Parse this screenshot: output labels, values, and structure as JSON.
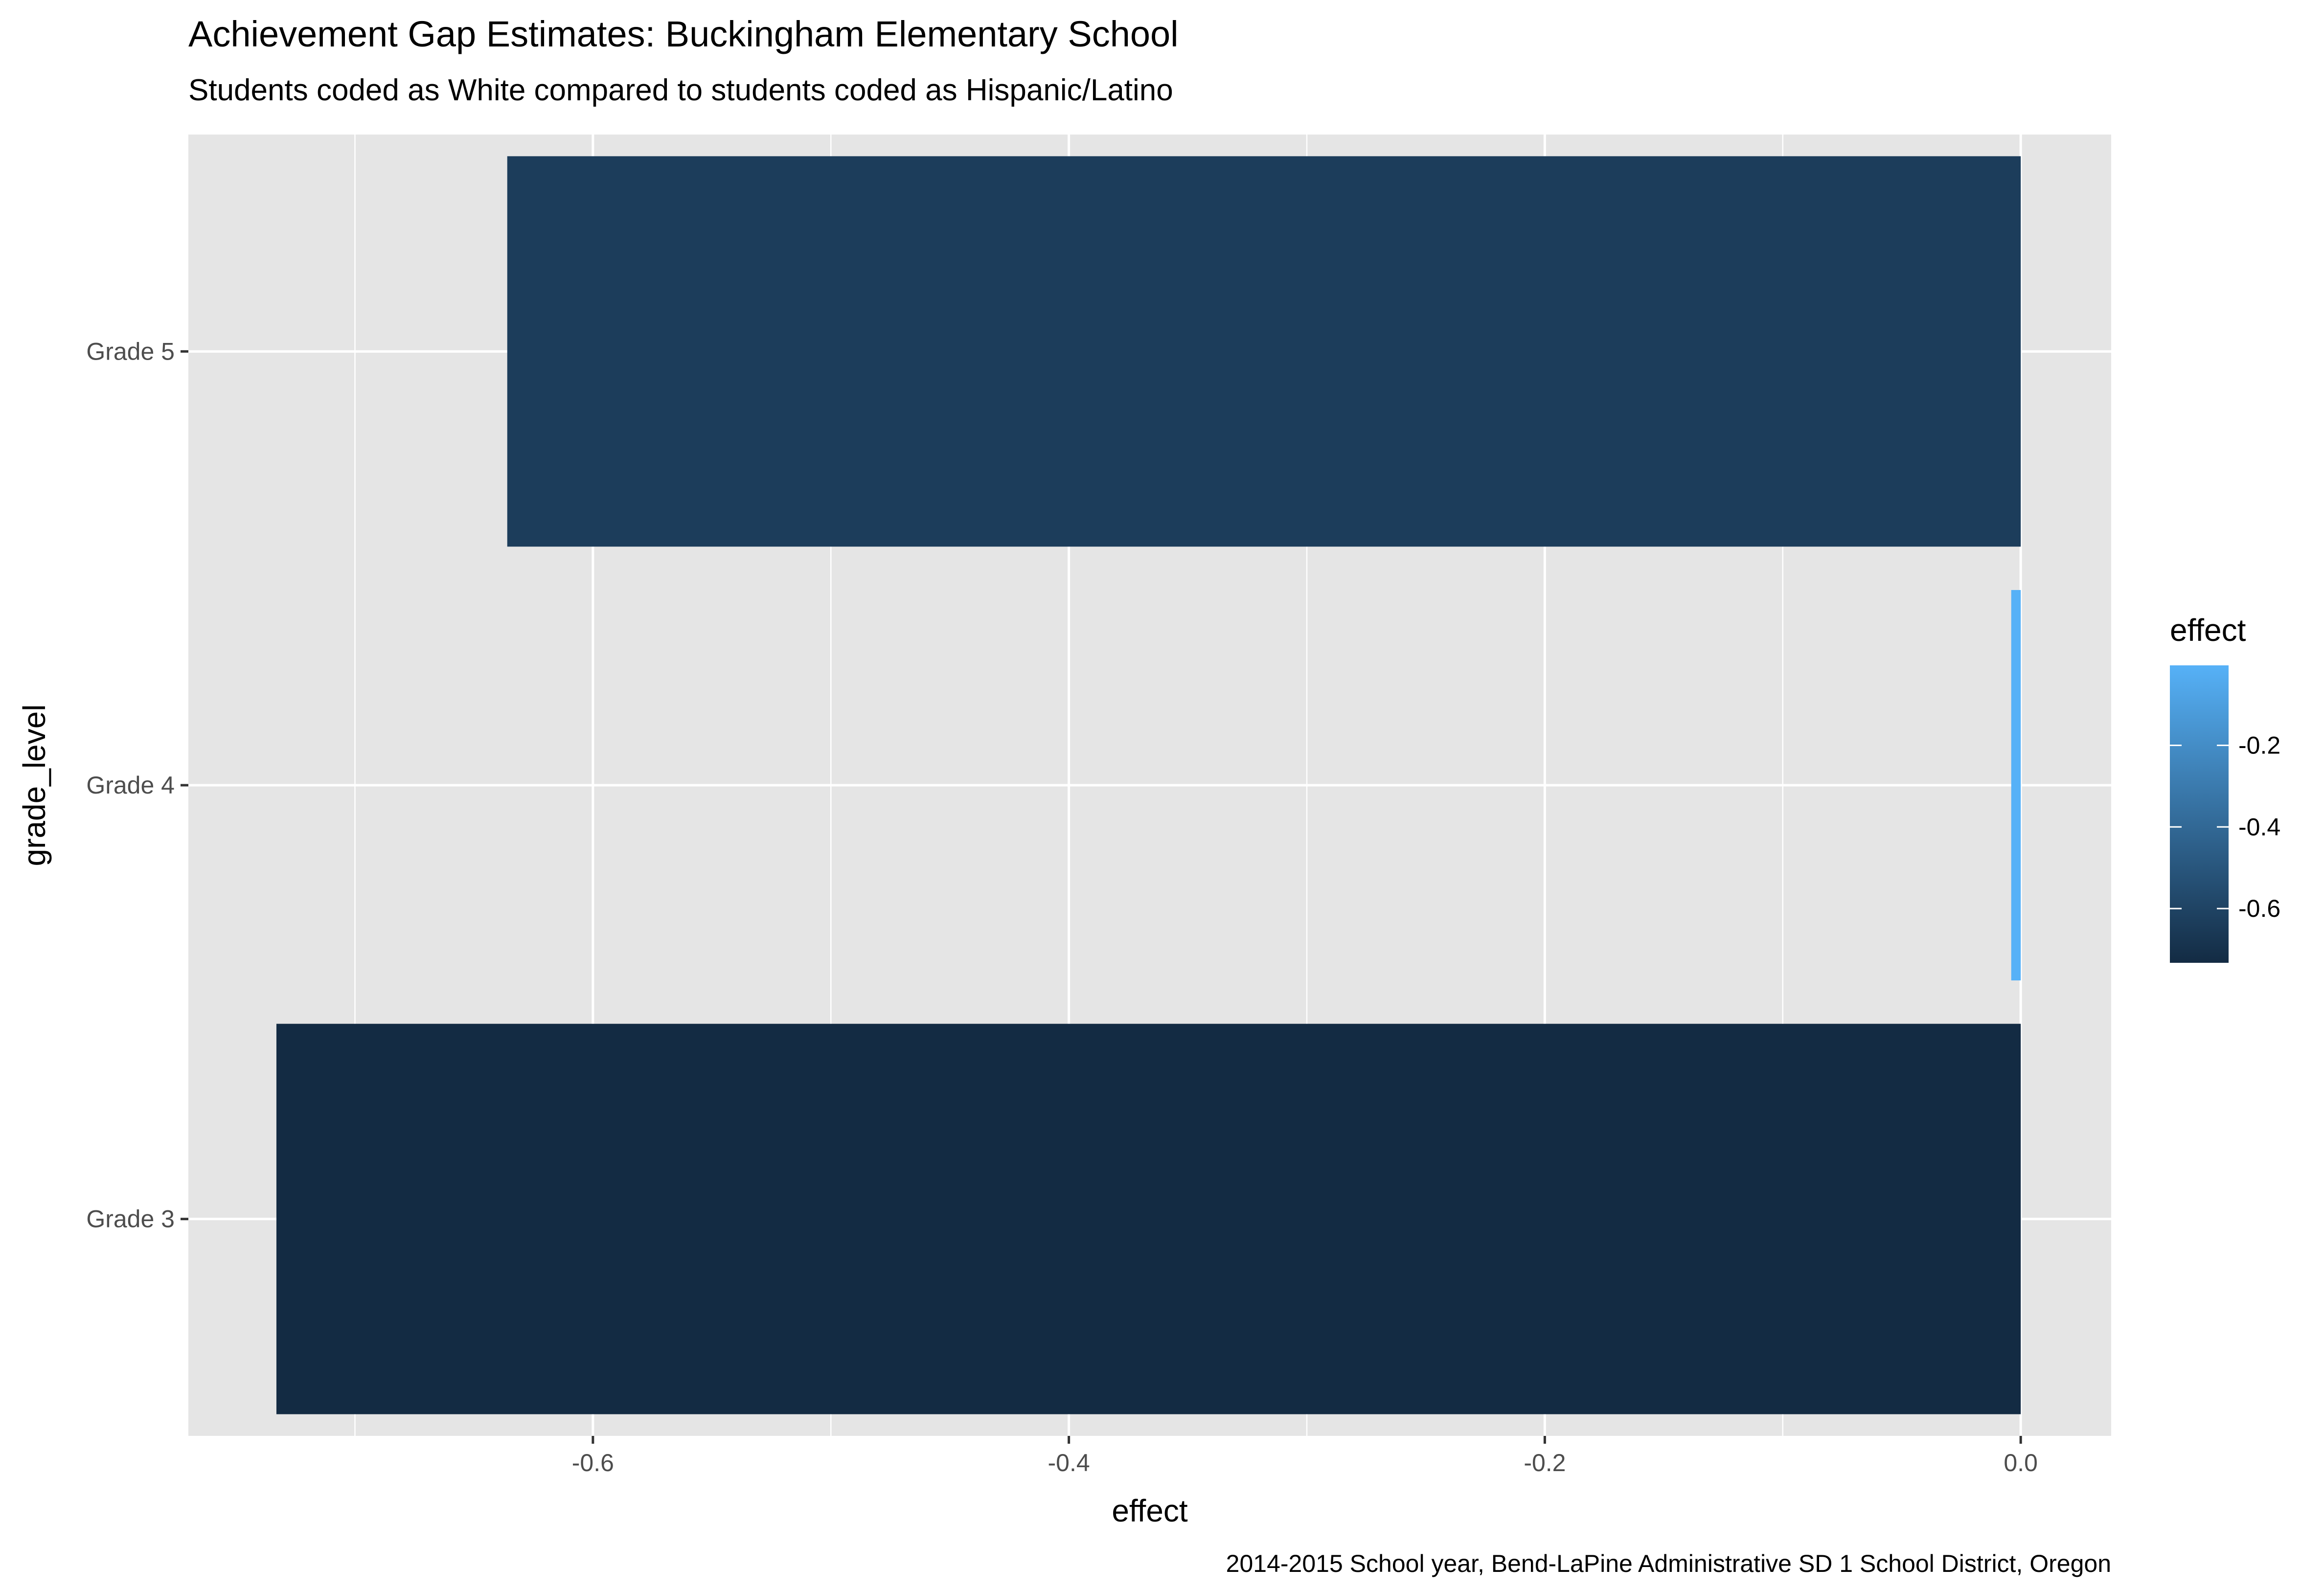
{
  "chart_data": {
    "type": "bar",
    "orientation": "horizontal",
    "title": "Achievement Gap Estimates: Buckingham Elementary School",
    "subtitle": "Students coded as White compared to students coded as Hispanic/Latino",
    "caption": "2014-2015 School year, Bend-LaPine Administrative SD 1 School District, Oregon",
    "xlabel": "effect",
    "ylabel": "grade_level",
    "categories": [
      "Grade 3",
      "Grade 4",
      "Grade 5"
    ],
    "values": [
      -0.733,
      -0.004,
      -0.636
    ],
    "xlim": [
      -0.77,
      0.038
    ],
    "x_ticks": [
      -0.6,
      -0.4,
      -0.2,
      0.0
    ],
    "x_tick_labels": [
      "-0.6",
      "-0.4",
      "-0.2",
      "0.0"
    ],
    "grid": true,
    "background_color": "#e5e5e5",
    "legend": {
      "title": "effect",
      "position": "right",
      "range": [
        -0.733,
        -0.004
      ],
      "ticks": [
        -0.6,
        -0.4,
        -0.2
      ],
      "tick_labels": [
        "-0.6",
        "-0.4",
        "-0.2"
      ],
      "low_color": "#132b43",
      "high_color": "#56b1f7"
    }
  }
}
